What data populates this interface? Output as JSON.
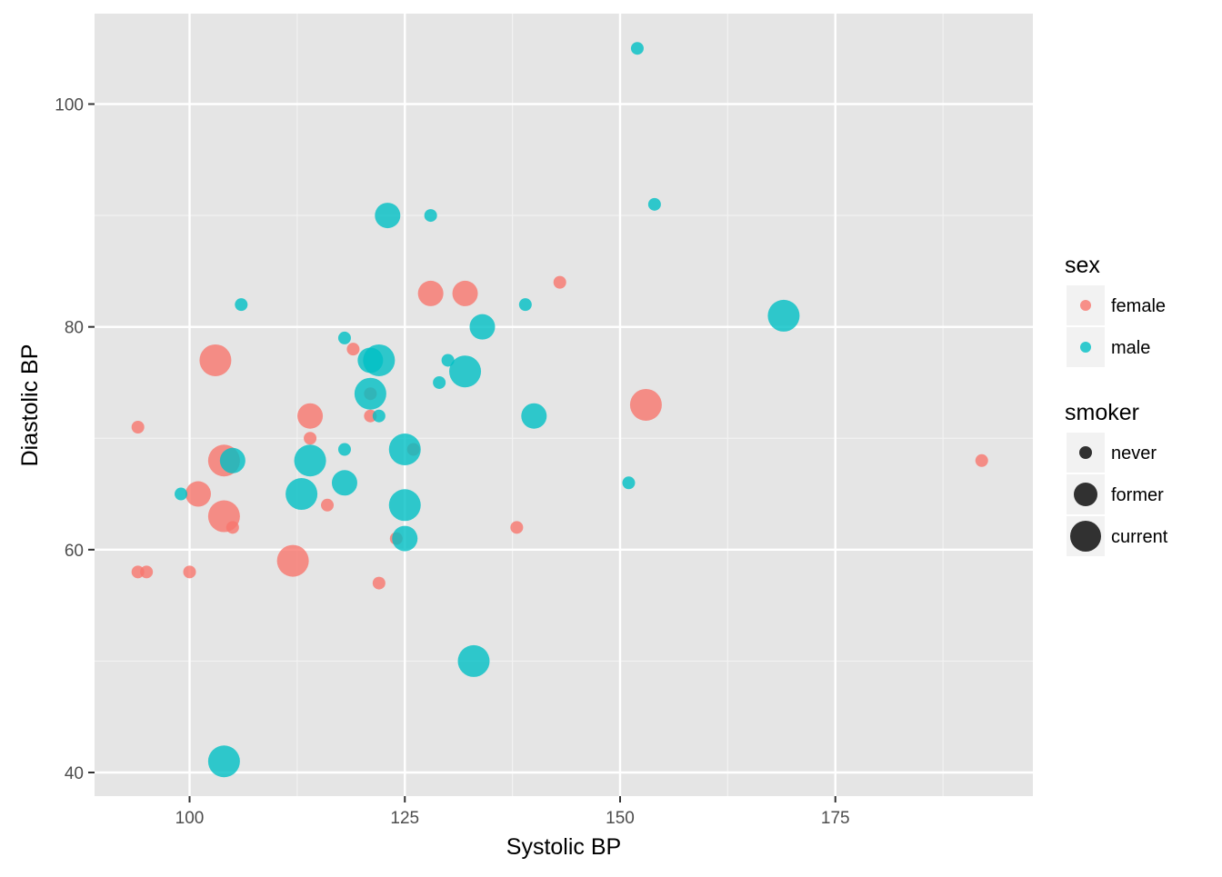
{
  "chart_data": {
    "type": "scatter",
    "xlabel": "Systolic BP",
    "ylabel": "Diastolic BP",
    "xlim": [
      89,
      198
    ],
    "ylim": [
      38,
      108
    ],
    "x_ticks": [
      100,
      125,
      150,
      175
    ],
    "y_ticks": [
      40,
      60,
      80,
      100
    ],
    "grid": true,
    "background": "#e5e5e5",
    "legend_position": "right",
    "color_legend": {
      "title": "sex",
      "entries": [
        {
          "label": "female",
          "color": "#f8766d"
        },
        {
          "label": "male",
          "color": "#00bfc4"
        }
      ]
    },
    "size_legend": {
      "title": "smoker",
      "entries": [
        {
          "label": "never",
          "size": 1
        },
        {
          "label": "former",
          "size": 2
        },
        {
          "label": "current",
          "size": 3
        }
      ]
    },
    "points": [
      {
        "x": 94,
        "y": 71,
        "sex": "female",
        "smoker": "never"
      },
      {
        "x": 94,
        "y": 58,
        "sex": "female",
        "smoker": "never"
      },
      {
        "x": 95,
        "y": 58,
        "sex": "female",
        "smoker": "never"
      },
      {
        "x": 100,
        "y": 58,
        "sex": "female",
        "smoker": "never"
      },
      {
        "x": 101,
        "y": 65,
        "sex": "female",
        "smoker": "former"
      },
      {
        "x": 103,
        "y": 77,
        "sex": "female",
        "smoker": "current"
      },
      {
        "x": 104,
        "y": 68,
        "sex": "female",
        "smoker": "current"
      },
      {
        "x": 104,
        "y": 63,
        "sex": "female",
        "smoker": "current"
      },
      {
        "x": 105,
        "y": 62,
        "sex": "female",
        "smoker": "never"
      },
      {
        "x": 112,
        "y": 59,
        "sex": "female",
        "smoker": "current"
      },
      {
        "x": 114,
        "y": 72,
        "sex": "female",
        "smoker": "former"
      },
      {
        "x": 114,
        "y": 70,
        "sex": "female",
        "smoker": "never"
      },
      {
        "x": 116,
        "y": 64,
        "sex": "female",
        "smoker": "never"
      },
      {
        "x": 119,
        "y": 78,
        "sex": "female",
        "smoker": "never"
      },
      {
        "x": 121,
        "y": 74,
        "sex": "female",
        "smoker": "never"
      },
      {
        "x": 121,
        "y": 72,
        "sex": "female",
        "smoker": "never"
      },
      {
        "x": 122,
        "y": 57,
        "sex": "female",
        "smoker": "never"
      },
      {
        "x": 124,
        "y": 61,
        "sex": "female",
        "smoker": "never"
      },
      {
        "x": 126,
        "y": 69,
        "sex": "female",
        "smoker": "never"
      },
      {
        "x": 128,
        "y": 83,
        "sex": "female",
        "smoker": "former"
      },
      {
        "x": 132,
        "y": 83,
        "sex": "female",
        "smoker": "former"
      },
      {
        "x": 138,
        "y": 62,
        "sex": "female",
        "smoker": "never"
      },
      {
        "x": 143,
        "y": 84,
        "sex": "female",
        "smoker": "never"
      },
      {
        "x": 153,
        "y": 73,
        "sex": "female",
        "smoker": "current"
      },
      {
        "x": 192,
        "y": 68,
        "sex": "female",
        "smoker": "never"
      },
      {
        "x": 99,
        "y": 65,
        "sex": "male",
        "smoker": "never"
      },
      {
        "x": 104,
        "y": 41,
        "sex": "male",
        "smoker": "current"
      },
      {
        "x": 105,
        "y": 68,
        "sex": "male",
        "smoker": "former"
      },
      {
        "x": 106,
        "y": 82,
        "sex": "male",
        "smoker": "never"
      },
      {
        "x": 113,
        "y": 65,
        "sex": "male",
        "smoker": "current"
      },
      {
        "x": 114,
        "y": 68,
        "sex": "male",
        "smoker": "current"
      },
      {
        "x": 118,
        "y": 79,
        "sex": "male",
        "smoker": "never"
      },
      {
        "x": 118,
        "y": 69,
        "sex": "male",
        "smoker": "never"
      },
      {
        "x": 118,
        "y": 66,
        "sex": "male",
        "smoker": "former"
      },
      {
        "x": 121,
        "y": 77,
        "sex": "male",
        "smoker": "former"
      },
      {
        "x": 121,
        "y": 74,
        "sex": "male",
        "smoker": "current"
      },
      {
        "x": 122,
        "y": 77,
        "sex": "male",
        "smoker": "current"
      },
      {
        "x": 122,
        "y": 72,
        "sex": "male",
        "smoker": "never"
      },
      {
        "x": 123,
        "y": 90,
        "sex": "male",
        "smoker": "former"
      },
      {
        "x": 125,
        "y": 69,
        "sex": "male",
        "smoker": "current"
      },
      {
        "x": 125,
        "y": 64,
        "sex": "male",
        "smoker": "current"
      },
      {
        "x": 125,
        "y": 61,
        "sex": "male",
        "smoker": "former"
      },
      {
        "x": 128,
        "y": 90,
        "sex": "male",
        "smoker": "never"
      },
      {
        "x": 129,
        "y": 75,
        "sex": "male",
        "smoker": "never"
      },
      {
        "x": 130,
        "y": 77,
        "sex": "male",
        "smoker": "never"
      },
      {
        "x": 132,
        "y": 76,
        "sex": "male",
        "smoker": "current"
      },
      {
        "x": 133,
        "y": 50,
        "sex": "male",
        "smoker": "current"
      },
      {
        "x": 134,
        "y": 80,
        "sex": "male",
        "smoker": "former"
      },
      {
        "x": 139,
        "y": 82,
        "sex": "male",
        "smoker": "never"
      },
      {
        "x": 140,
        "y": 72,
        "sex": "male",
        "smoker": "former"
      },
      {
        "x": 151,
        "y": 66,
        "sex": "male",
        "smoker": "never"
      },
      {
        "x": 152,
        "y": 105,
        "sex": "male",
        "smoker": "never"
      },
      {
        "x": 154,
        "y": 91,
        "sex": "male",
        "smoker": "never"
      },
      {
        "x": 169,
        "y": 81,
        "sex": "male",
        "smoker": "current"
      }
    ]
  }
}
